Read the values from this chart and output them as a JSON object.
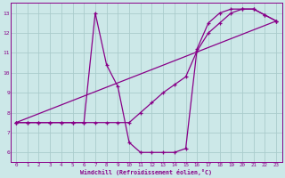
{
  "xlabel": "Windchill (Refroidissement éolien,°C)",
  "bg_color": "#cce8e8",
  "line_color": "#880088",
  "grid_color": "#aacccc",
  "xlim": [
    -0.5,
    23.5
  ],
  "ylim": [
    5.5,
    13.5
  ],
  "xticks": [
    0,
    1,
    2,
    3,
    4,
    5,
    6,
    7,
    8,
    9,
    10,
    11,
    12,
    13,
    14,
    15,
    16,
    17,
    18,
    19,
    20,
    21,
    22,
    23
  ],
  "yticks": [
    6,
    7,
    8,
    9,
    10,
    11,
    12,
    13
  ],
  "line1_x": [
    0,
    1,
    2,
    3,
    4,
    5,
    6,
    7,
    8,
    9,
    10,
    11,
    12,
    13,
    14,
    15,
    16,
    17,
    18,
    19,
    20,
    21,
    22,
    23
  ],
  "line1_y": [
    7.5,
    7.5,
    7.5,
    7.5,
    7.5,
    7.5,
    7.5,
    13.0,
    10.4,
    9.3,
    6.5,
    6.0,
    6.0,
    6.0,
    6.0,
    6.2,
    11.2,
    12.5,
    13.0,
    13.2,
    13.2,
    13.2,
    12.9,
    12.6
  ],
  "line2_x": [
    0,
    1,
    2,
    3,
    4,
    5,
    6,
    7,
    8,
    9,
    10,
    11,
    12,
    13,
    14,
    15,
    16,
    17,
    18,
    19,
    20,
    21,
    22,
    23
  ],
  "line2_y": [
    7.5,
    7.5,
    7.5,
    7.5,
    7.5,
    7.5,
    7.5,
    7.5,
    7.5,
    7.5,
    7.5,
    8.0,
    8.5,
    9.0,
    9.4,
    9.8,
    11.1,
    12.0,
    12.5,
    13.0,
    13.2,
    13.2,
    12.9,
    12.6
  ],
  "line3_x": [
    0,
    23
  ],
  "line3_y": [
    7.5,
    12.6
  ]
}
